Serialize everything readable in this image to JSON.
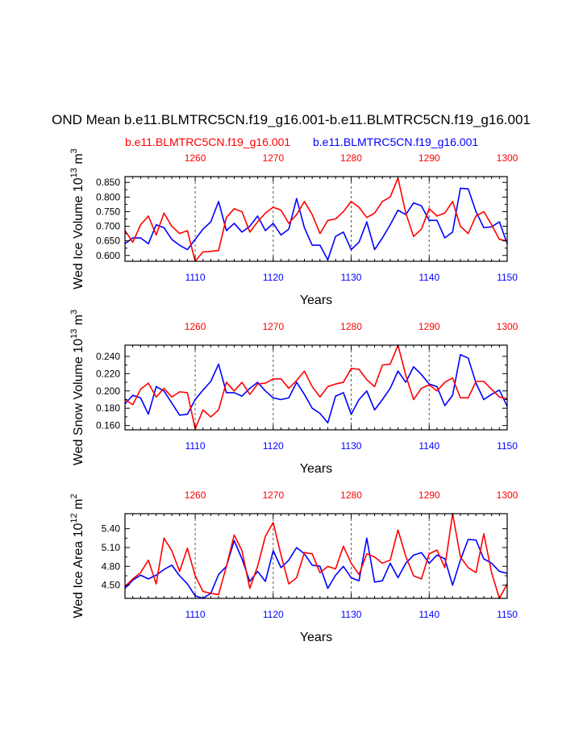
{
  "title": "OND Mean b.e11.BLMTRC5CN.f19_g16.001-b.e11.BLMTRC5CN.f19_g16.001",
  "legend": {
    "red_label": "b.e11.BLMTRC5CN.f19_g16.001",
    "blue_label": "b.e11.BLMTRC5CN.f19_g16.001"
  },
  "colors": {
    "red": "#ff0000",
    "blue": "#0000ff",
    "axis": "#000000",
    "grid": "#555555"
  },
  "chart_data": [
    {
      "type": "line",
      "name": "ice-volume",
      "ylabel": "Wed Ice Volume 10",
      "ylabel_exp": "13",
      "ylabel_unit": "m",
      "ylabel_unit_exp": "3",
      "xlabel": "Years",
      "xlim": [
        1101,
        1150
      ],
      "ylim": [
        0.58,
        0.87
      ],
      "bottom_ticks": [
        1110,
        1120,
        1130,
        1140,
        1150
      ],
      "bottom_tick_labels": [
        "1110",
        "1120",
        "1130",
        "1140",
        "1150"
      ],
      "top_ticks": [
        1260,
        1270,
        1280,
        1290,
        1300
      ],
      "top_tick_labels": [
        "1260",
        "1270",
        "1280",
        "1290",
        "1300"
      ],
      "y_ticks": [
        0.6,
        0.65,
        0.7,
        0.75,
        0.8,
        0.85
      ],
      "y_tick_labels": [
        "0.600",
        "0.650",
        "0.700",
        "0.750",
        "0.800",
        "0.850"
      ],
      "series": [
        {
          "name": "b.e11.BLMTRC5CN.f19_g16.001 (years 1101-1150)",
          "color": "blue",
          "values": [
            0.64,
            0.66,
            0.66,
            0.64,
            0.705,
            0.695,
            0.655,
            0.635,
            0.62,
            0.655,
            0.69,
            0.715,
            0.785,
            0.685,
            0.71,
            0.68,
            0.7,
            0.735,
            0.685,
            0.71,
            0.67,
            0.69,
            0.795,
            0.695,
            0.635,
            0.635,
            0.585,
            0.665,
            0.68,
            0.62,
            0.645,
            0.715,
            0.62,
            0.66,
            0.705,
            0.755,
            0.74,
            0.78,
            0.77,
            0.72,
            0.72,
            0.66,
            0.68,
            0.83,
            0.828,
            0.75,
            0.695,
            0.698,
            0.715,
            0.64
          ]
        },
        {
          "name": "b.e11.BLMTRC5CN.f19_g16.001 (years 1251-1300)",
          "color": "red",
          "values": [
            0.685,
            0.645,
            0.705,
            0.735,
            0.67,
            0.745,
            0.7,
            0.675,
            0.685,
            0.58,
            0.612,
            0.614,
            0.617,
            0.73,
            0.76,
            0.75,
            0.68,
            0.715,
            0.745,
            0.765,
            0.755,
            0.71,
            0.74,
            0.785,
            0.74,
            0.675,
            0.72,
            0.725,
            0.75,
            0.785,
            0.765,
            0.73,
            0.745,
            0.785,
            0.8,
            0.865,
            0.745,
            0.665,
            0.69,
            0.76,
            0.735,
            0.745,
            0.785,
            0.7,
            0.675,
            0.735,
            0.75,
            0.705,
            0.655,
            0.65
          ]
        }
      ]
    },
    {
      "type": "line",
      "name": "snow-volume",
      "ylabel": "Wed Snow Volume 10",
      "ylabel_exp": "13",
      "ylabel_unit": "m",
      "ylabel_unit_exp": "3",
      "xlabel": "Years",
      "xlim": [
        1101,
        1150
      ],
      "ylim": [
        0.155,
        0.253
      ],
      "bottom_ticks": [
        1110,
        1120,
        1130,
        1140,
        1150
      ],
      "bottom_tick_labels": [
        "1110",
        "1120",
        "1130",
        "1140",
        "1150"
      ],
      "top_ticks": [
        1260,
        1270,
        1280,
        1290,
        1300
      ],
      "top_tick_labels": [
        "1260",
        "1270",
        "1280",
        "1290",
        "1300"
      ],
      "y_ticks": [
        0.16,
        0.18,
        0.2,
        0.22,
        0.24
      ],
      "y_tick_labels": [
        "0.160",
        "0.180",
        "0.200",
        "0.220",
        "0.240"
      ],
      "series": [
        {
          "name": "b.e11.BLMTRC5CN.f19_g16.001 (years 1101-1150)",
          "color": "blue",
          "values": [
            0.185,
            0.195,
            0.192,
            0.173,
            0.205,
            0.2,
            0.186,
            0.172,
            0.173,
            0.19,
            0.201,
            0.211,
            0.231,
            0.198,
            0.198,
            0.194,
            0.203,
            0.21,
            0.2,
            0.192,
            0.19,
            0.192,
            0.21,
            0.196,
            0.18,
            0.174,
            0.163,
            0.194,
            0.198,
            0.173,
            0.19,
            0.2,
            0.178,
            0.19,
            0.203,
            0.223,
            0.21,
            0.228,
            0.219,
            0.208,
            0.205,
            0.183,
            0.195,
            0.242,
            0.238,
            0.209,
            0.19,
            0.196,
            0.201,
            0.182
          ]
        },
        {
          "name": "b.e11.BLMTRC5CN.f19_g16.001 (years 1251-1300)",
          "color": "red",
          "values": [
            0.19,
            0.184,
            0.202,
            0.209,
            0.193,
            0.203,
            0.193,
            0.199,
            0.198,
            0.156,
            0.178,
            0.17,
            0.178,
            0.21,
            0.2,
            0.21,
            0.196,
            0.208,
            0.209,
            0.214,
            0.214,
            0.203,
            0.212,
            0.223,
            0.205,
            0.193,
            0.205,
            0.208,
            0.21,
            0.226,
            0.225,
            0.213,
            0.205,
            0.23,
            0.231,
            0.253,
            0.218,
            0.19,
            0.203,
            0.207,
            0.2,
            0.21,
            0.215,
            0.192,
            0.192,
            0.211,
            0.211,
            0.202,
            0.193,
            0.191
          ]
        }
      ]
    },
    {
      "type": "line",
      "name": "ice-area",
      "ylabel": "Wed Ice Area 10",
      "ylabel_exp": "12",
      "ylabel_unit": "m",
      "ylabel_unit_exp": "2",
      "xlabel": "Years",
      "xlim": [
        1101,
        1150
      ],
      "ylim": [
        4.29,
        5.64
      ],
      "bottom_ticks": [
        1110,
        1120,
        1130,
        1140,
        1150
      ],
      "bottom_tick_labels": [
        "1110",
        "1120",
        "1130",
        "1140",
        "1150"
      ],
      "top_ticks": [
        1260,
        1270,
        1280,
        1290,
        1300
      ],
      "top_tick_labels": [
        "1260",
        "1270",
        "1280",
        "1290",
        "1300"
      ],
      "y_ticks": [
        4.5,
        4.8,
        5.1,
        5.4
      ],
      "y_tick_labels": [
        "4.50",
        "4.80",
        "5.10",
        "5.40"
      ],
      "series": [
        {
          "name": "b.e11.BLMTRC5CN.f19_g16.001 (years 1101-1150)",
          "color": "blue",
          "values": [
            4.45,
            4.58,
            4.66,
            4.6,
            4.66,
            4.75,
            4.82,
            4.65,
            4.52,
            4.33,
            4.29,
            4.37,
            4.67,
            4.8,
            5.21,
            4.92,
            4.56,
            4.72,
            4.56,
            5.05,
            4.78,
            4.9,
            5.1,
            5.0,
            4.82,
            4.8,
            4.45,
            4.66,
            4.8,
            4.62,
            4.57,
            5.25,
            4.55,
            4.57,
            4.85,
            4.62,
            4.85,
            4.98,
            5.02,
            4.85,
            4.98,
            4.92,
            4.5,
            4.9,
            5.23,
            5.22,
            4.92,
            4.85,
            4.72,
            4.69
          ]
        },
        {
          "name": "b.e11.BLMTRC5CN.f19_g16.001 (years 1251-1300)",
          "color": "red",
          "values": [
            4.48,
            4.6,
            4.7,
            4.9,
            4.52,
            5.25,
            5.05,
            4.72,
            5.09,
            4.65,
            4.4,
            4.37,
            4.35,
            4.8,
            5.3,
            5.05,
            4.45,
            4.8,
            5.28,
            5.5,
            4.98,
            4.52,
            4.62,
            5.02,
            5.0,
            4.7,
            4.8,
            4.76,
            5.12,
            4.85,
            4.67,
            5.0,
            4.95,
            4.85,
            4.9,
            5.38,
            4.96,
            4.65,
            4.6,
            5.0,
            5.06,
            4.78,
            5.64,
            4.95,
            4.78,
            4.7,
            5.32,
            4.7,
            4.29,
            4.52
          ]
        }
      ]
    }
  ]
}
